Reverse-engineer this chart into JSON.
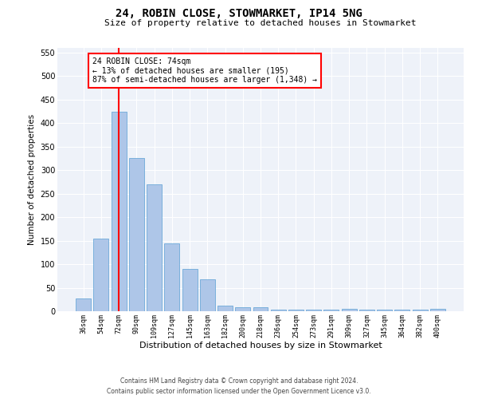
{
  "title1": "24, ROBIN CLOSE, STOWMARKET, IP14 5NG",
  "title2": "Size of property relative to detached houses in Stowmarket",
  "xlabel": "Distribution of detached houses by size in Stowmarket",
  "ylabel": "Number of detached properties",
  "categories": [
    "36sqm",
    "54sqm",
    "72sqm",
    "90sqm",
    "109sqm",
    "127sqm",
    "145sqm",
    "163sqm",
    "182sqm",
    "200sqm",
    "218sqm",
    "236sqm",
    "254sqm",
    "273sqm",
    "291sqm",
    "309sqm",
    "327sqm",
    "345sqm",
    "364sqm",
    "382sqm",
    "400sqm"
  ],
  "values": [
    27,
    155,
    425,
    325,
    270,
    145,
    90,
    68,
    12,
    9,
    9,
    3,
    3,
    3,
    3,
    5,
    3,
    3,
    3,
    3,
    5
  ],
  "bar_color": "#aec6e8",
  "bar_edge_color": "#5a9fd4",
  "vline_color": "red",
  "annotation_text": "24 ROBIN CLOSE: 74sqm\n← 13% of detached houses are smaller (195)\n87% of semi-detached houses are larger (1,348) →",
  "annotation_box_color": "white",
  "annotation_box_edge_color": "red",
  "ylim": [
    0,
    560
  ],
  "yticks": [
    0,
    50,
    100,
    150,
    200,
    250,
    300,
    350,
    400,
    450,
    500,
    550
  ],
  "footer1": "Contains HM Land Registry data © Crown copyright and database right 2024.",
  "footer2": "Contains public sector information licensed under the Open Government Licence v3.0.",
  "background_color": "#eef2f9",
  "grid_color": "white"
}
